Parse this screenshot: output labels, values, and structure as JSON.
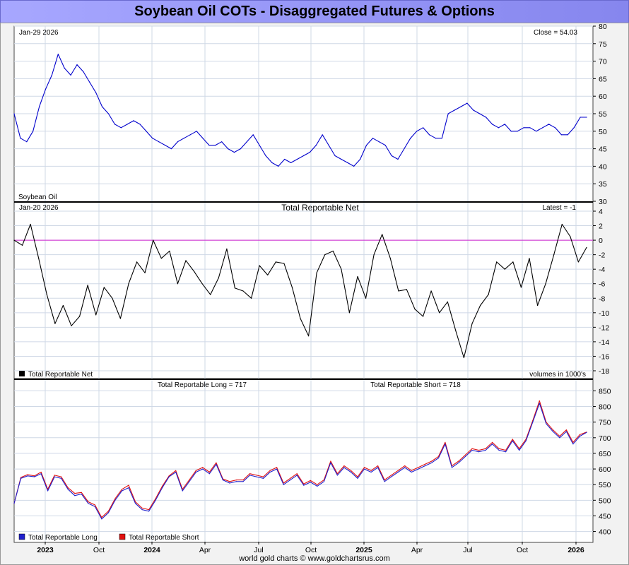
{
  "page": {
    "title": "Soybean Oil COTs - Disaggregated Futures & Options",
    "footer": "world gold charts © www.goldchartsrus.com"
  },
  "colors": {
    "title_bg": "#9a9aff",
    "price_line": "#0000cc",
    "net_line": "#000000",
    "zero_line": "#d020d0",
    "long_line": "#2020cc",
    "short_line": "#e01010",
    "grid": "#cfd8e6"
  },
  "time_axis": {
    "labels": [
      "2023",
      "Oct",
      "2024",
      "Apr",
      "Jul",
      "Oct",
      "2025",
      "Apr",
      "Jul",
      "Oct",
      "2026"
    ],
    "bold_labels": [
      "2023",
      "2024",
      "2025",
      "2026"
    ]
  },
  "chart_data": [
    {
      "type": "line",
      "panel": "price",
      "date_label": "Jan-29  2026",
      "latest_label": "Close = 54.03",
      "series_label": "Soybean Oil",
      "ylim": [
        30,
        80
      ],
      "ticks": [
        30,
        35,
        40,
        45,
        50,
        55,
        60,
        65,
        70,
        75,
        80
      ],
      "series": [
        {
          "name": "Soybean Oil",
          "values": [
            55,
            48,
            47,
            50,
            57,
            62,
            66,
            72,
            68,
            66,
            69,
            67,
            64,
            61,
            57,
            55,
            52,
            51,
            52,
            53,
            52,
            50,
            48,
            47,
            46,
            45,
            47,
            48,
            49,
            50,
            48,
            46,
            46,
            47,
            45,
            44,
            45,
            47,
            49,
            46,
            43,
            41,
            40,
            42,
            41,
            42,
            43,
            44,
            46,
            49,
            46,
            43,
            42,
            41,
            40,
            42,
            46,
            48,
            47,
            46,
            43,
            42,
            45,
            48,
            50,
            51,
            49,
            48,
            48,
            55,
            56,
            57,
            58,
            56,
            55,
            54,
            52,
            51,
            52,
            50,
            50,
            51,
            51,
            50,
            51,
            52,
            51,
            49,
            49,
            51,
            54,
            54
          ]
        }
      ]
    },
    {
      "type": "line",
      "panel": "net",
      "date_label": "Jan-20  2026",
      "title": "Total Reportable Net",
      "latest_label": "Latest = -1",
      "legend": "Total Reportable Net",
      "units_note": "volumes in 1000's",
      "ylim": [
        -18,
        4
      ],
      "ticks": [
        -18,
        -16,
        -14,
        -12,
        -10,
        -8,
        -6,
        -4,
        -2,
        0,
        2,
        4
      ],
      "series": [
        {
          "name": "Total Reportable Net",
          "values": [
            0,
            -0.7,
            2.2,
            -2.5,
            -7.5,
            -11.5,
            -9,
            -11.8,
            -10.5,
            -6.2,
            -10.3,
            -6.5,
            -8,
            -10.8,
            -6,
            -3,
            -4.5,
            0,
            -2.5,
            -1.5,
            -6,
            -2.8,
            -4.3,
            -6,
            -7.5,
            -5.2,
            -1.2,
            -6.6,
            -7,
            -8,
            -3.5,
            -4.8,
            -3,
            -3.2,
            -6.5,
            -10.8,
            -13.2,
            -4.5,
            -2,
            -1.5,
            -4,
            -10,
            -5,
            -8,
            -2,
            0.8,
            -2.5,
            -7,
            -6.8,
            -9.5,
            -10.5,
            -7,
            -10,
            -8.5,
            -12.5,
            -16.2,
            -11.5,
            -9,
            -7.5,
            -3,
            -4,
            -3,
            -6.5,
            -2.5,
            -9,
            -6,
            -2,
            2.2,
            0.5,
            -3,
            -1
          ]
        }
      ]
    },
    {
      "type": "line",
      "panel": "long_short",
      "long_label": "Total Reportable Long = 717",
      "short_label": "Total Reportable Short = 718",
      "ylim": [
        390,
        860
      ],
      "ticks": [
        400,
        450,
        500,
        550,
        600,
        650,
        700,
        750,
        800,
        850
      ],
      "series": [
        {
          "name": "Total Reportable Long",
          "values": [
            490,
            570,
            578,
            575,
            585,
            530,
            575,
            570,
            535,
            515,
            520,
            490,
            480,
            440,
            460,
            500,
            530,
            540,
            490,
            470,
            465,
            500,
            540,
            575,
            590,
            530,
            560,
            590,
            600,
            585,
            615,
            565,
            555,
            560,
            560,
            580,
            575,
            570,
            590,
            600,
            550,
            565,
            580,
            548,
            558,
            545,
            560,
            620,
            580,
            605,
            590,
            570,
            600,
            590,
            605,
            560,
            575,
            590,
            605,
            590,
            600,
            610,
            620,
            635,
            680,
            605,
            620,
            640,
            660,
            655,
            660,
            680,
            660,
            655,
            690,
            660,
            690,
            750,
            810,
            745,
            720,
            700,
            720,
            680,
            705,
            717
          ]
        },
        {
          "name": "Total Reportable Short",
          "values": [
            490,
            573,
            582,
            578,
            590,
            535,
            580,
            575,
            540,
            522,
            525,
            495,
            485,
            445,
            465,
            505,
            535,
            548,
            495,
            475,
            470,
            505,
            545,
            578,
            595,
            535,
            565,
            595,
            605,
            590,
            620,
            568,
            560,
            565,
            565,
            585,
            580,
            575,
            595,
            605,
            555,
            570,
            585,
            552,
            563,
            550,
            565,
            625,
            585,
            610,
            595,
            575,
            605,
            595,
            610,
            565,
            580,
            595,
            610,
            595,
            605,
            615,
            625,
            640,
            685,
            610,
            625,
            645,
            665,
            660,
            665,
            685,
            665,
            660,
            695,
            665,
            695,
            755,
            818,
            750,
            725,
            705,
            725,
            685,
            710,
            718
          ]
        }
      ]
    }
  ]
}
